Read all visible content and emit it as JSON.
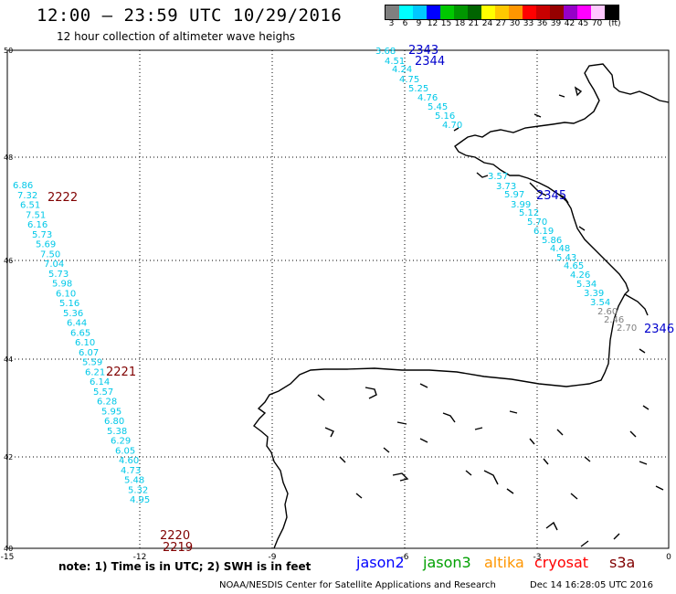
{
  "header": {
    "title": "12:00 – 23:59 UTC 10/29/2016",
    "subtitle": "12 hour collection of altimeter wave heighs"
  },
  "legend": {
    "swatches": [
      {
        "label": "3",
        "color": "#7f7f7f"
      },
      {
        "label": "6",
        "color": "#00ffff"
      },
      {
        "label": "9",
        "color": "#00c8ff"
      },
      {
        "label": "12",
        "color": "#0000ff"
      },
      {
        "label": "15",
        "color": "#00c800"
      },
      {
        "label": "18",
        "color": "#009600"
      },
      {
        "label": "21",
        "color": "#006400"
      },
      {
        "label": "24",
        "color": "#ffff00"
      },
      {
        "label": "27",
        "color": "#ffc800"
      },
      {
        "label": "30",
        "color": "#ff9600"
      },
      {
        "label": "33",
        "color": "#ff0000"
      },
      {
        "label": "36",
        "color": "#c80000"
      },
      {
        "label": "39",
        "color": "#960000"
      },
      {
        "label": "42",
        "color": "#9600c8"
      },
      {
        "label": "45",
        "color": "#ff00ff"
      },
      {
        "label": "70",
        "color": "#ffc8ff"
      },
      {
        "label": "",
        "color": "#000000"
      }
    ],
    "unit": "(ft)"
  },
  "axes": {
    "x_ticks": [
      "-15",
      "-12",
      "-9",
      "-6",
      "-3",
      "0"
    ],
    "y_ticks": [
      "50",
      "48",
      "46",
      "44",
      "42",
      "40"
    ]
  },
  "tracks": {
    "west": {
      "color": "#00c8e8",
      "values": [
        "6.86",
        "7.32",
        "6.51",
        "7.51",
        "6.16",
        "5.73",
        "5.69",
        "7.50",
        "7.04",
        "5.73",
        "5.98",
        "6.10",
        "5.16",
        "5.36",
        "6.44",
        "6.65",
        "6.10",
        "6.07",
        "5.59",
        "6.21",
        "6.14",
        "5.57",
        "6.28",
        "5.95",
        "6.80",
        "5.38",
        "6.29",
        "6.05",
        "4.60",
        "4.73",
        "5.48",
        "5.32",
        "4.95"
      ]
    },
    "north": {
      "color": "#00c8e8",
      "values": [
        "3.68",
        "4.51",
        "4.24",
        "4.75",
        "5.25",
        "4.76",
        "5.45",
        "5.16",
        "4.70"
      ]
    },
    "east": {
      "color": "#00c8e8",
      "values": [
        "3.57",
        "3.73",
        "5.97",
        "3.99",
        "5.12",
        "5.70",
        "6.19",
        "5.86",
        "4.48",
        "5.43",
        "4.65",
        "4.26",
        "5.34",
        "3.39",
        "3.54"
      ]
    },
    "east_gray": {
      "color": "#808080",
      "values": [
        "2.60",
        "2.46",
        "2.70"
      ]
    }
  },
  "pass_labels": [
    {
      "text": "2343",
      "color": "#0000cc"
    },
    {
      "text": "2344",
      "color": "#0000cc"
    },
    {
      "text": "2345",
      "color": "#0000cc"
    },
    {
      "text": "2346",
      "color": "#0000cc"
    },
    {
      "text": "2222",
      "color": "#800000"
    },
    {
      "text": "2221",
      "color": "#800000"
    },
    {
      "text": "2220",
      "color": "#800000"
    },
    {
      "text": "2219",
      "color": "#800000"
    }
  ],
  "footer": {
    "note": "note:  1) Time is in UTC;  2) SWH is in feet",
    "satellites": [
      {
        "name": "jason2",
        "color": "#0000ff"
      },
      {
        "name": "jason3",
        "color": "#00a000"
      },
      {
        "name": "altika",
        "color": "#ff9600"
      },
      {
        "name": "cryosat",
        "color": "#ff0000"
      },
      {
        "name": "s3a",
        "color": "#800000"
      }
    ],
    "credit": "NOAA/NESDIS Center for Satellite Applications and Research",
    "timestamp": "Dec 14 16:28:05 UTC 2016"
  }
}
